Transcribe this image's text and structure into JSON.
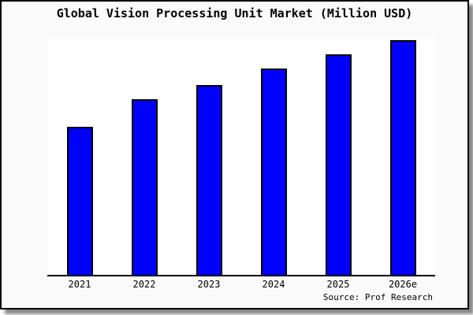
{
  "chart_data": {
    "type": "bar",
    "title": "Global Vision Processing Unit Market (Million USD)",
    "xlabel": "",
    "ylabel": "",
    "categories": [
      "2021",
      "2022",
      "2023",
      "2024",
      "2025",
      "2026e"
    ],
    "values": [
      63,
      75,
      81,
      88,
      94,
      100
    ],
    "values_note": "no y-axis shown; values are estimated relative bar heights with 2026e = 100",
    "ylim": [
      0,
      101
    ],
    "grid": false,
    "legend": false,
    "bar_color": "#0000ff",
    "bar_border_color": "#000000"
  },
  "footer": {
    "source": "Source: Prof Research"
  },
  "colors": {
    "card_background": "#fafafa",
    "plot_background": "#ffffff",
    "frame": "#000000",
    "shadow": "#8a8a8a",
    "bar": "#0000ff"
  }
}
